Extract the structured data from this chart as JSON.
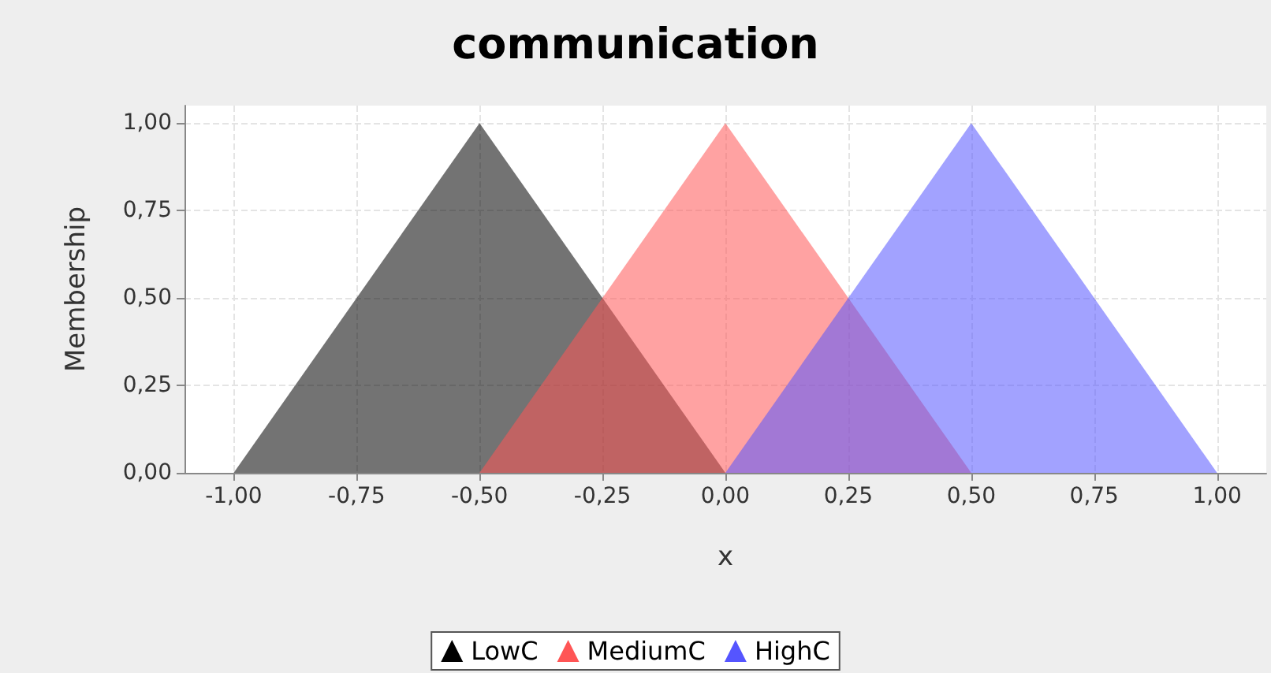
{
  "chart_data": {
    "type": "area",
    "title": "communication",
    "xlabel": "x",
    "ylabel": "Membership",
    "series": [
      {
        "name": "LowC",
        "color": "#000000",
        "x": [
          -1,
          -0.5,
          0
        ],
        "values": [
          0,
          1,
          0
        ]
      },
      {
        "name": "MediumC",
        "color": "#ff5555",
        "x": [
          -0.5,
          0,
          0.5
        ],
        "values": [
          0,
          1,
          0
        ]
      },
      {
        "name": "HighC",
        "color": "#5555ff",
        "x": [
          0,
          0.5,
          1
        ],
        "values": [
          0,
          1,
          0
        ]
      }
    ],
    "xlim": [
      -1.1,
      1.1
    ],
    "xticks": [
      {
        "value": -1,
        "label": "-1,00"
      },
      {
        "value": -0.75,
        "label": "-0,75"
      },
      {
        "value": -0.5,
        "label": "-0,50"
      },
      {
        "value": -0.25,
        "label": "-0,25"
      },
      {
        "value": 0,
        "label": "0,00"
      },
      {
        "value": 0.25,
        "label": "0,25"
      },
      {
        "value": 0.5,
        "label": "0,50"
      },
      {
        "value": 0.75,
        "label": "0,75"
      },
      {
        "value": 1,
        "label": "1,00"
      }
    ],
    "ylim": [
      0,
      1.05
    ],
    "yticks": [
      {
        "value": 0,
        "label": "0,00"
      },
      {
        "value": 0.25,
        "label": "0,25"
      },
      {
        "value": 0.5,
        "label": "0,50"
      },
      {
        "value": 0.75,
        "label": "0,75"
      },
      {
        "value": 1,
        "label": "1,00"
      }
    ],
    "grid": true,
    "legend": "bottom",
    "marker": "none"
  }
}
